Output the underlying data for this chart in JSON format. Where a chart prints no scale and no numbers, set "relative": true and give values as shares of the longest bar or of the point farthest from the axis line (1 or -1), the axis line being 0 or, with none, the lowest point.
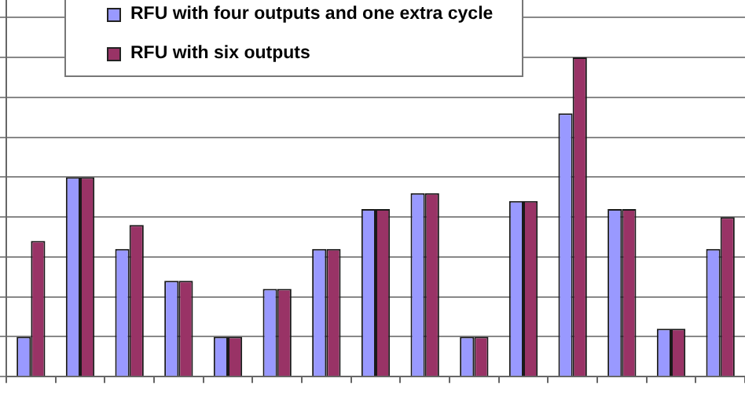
{
  "chart_data": {
    "type": "bar",
    "relative": true,
    "categories": [
      null,
      null,
      null,
      null,
      null,
      null,
      null,
      null,
      null,
      null,
      null,
      null,
      null,
      null,
      null
    ],
    "series": [
      {
        "name": "RFU with four outputs and one extra cycle",
        "color": "#9999ff",
        "values": [
          0.125,
          0.625,
          0.4,
          0.3,
          0.125,
          0.275,
          0.4,
          0.525,
          0.575,
          0.125,
          0.55,
          0.825,
          0.525,
          0.15,
          0.4
        ]
      },
      {
        "name": "RFU with six outputs",
        "color": "#993366",
        "values": [
          0.425,
          0.625,
          0.475,
          0.3,
          0.125,
          0.275,
          0.4,
          0.525,
          0.575,
          0.125,
          0.55,
          1,
          0.525,
          0.15,
          0.5
        ]
      }
    ],
    "grid": "y",
    "legend": "top"
  }
}
